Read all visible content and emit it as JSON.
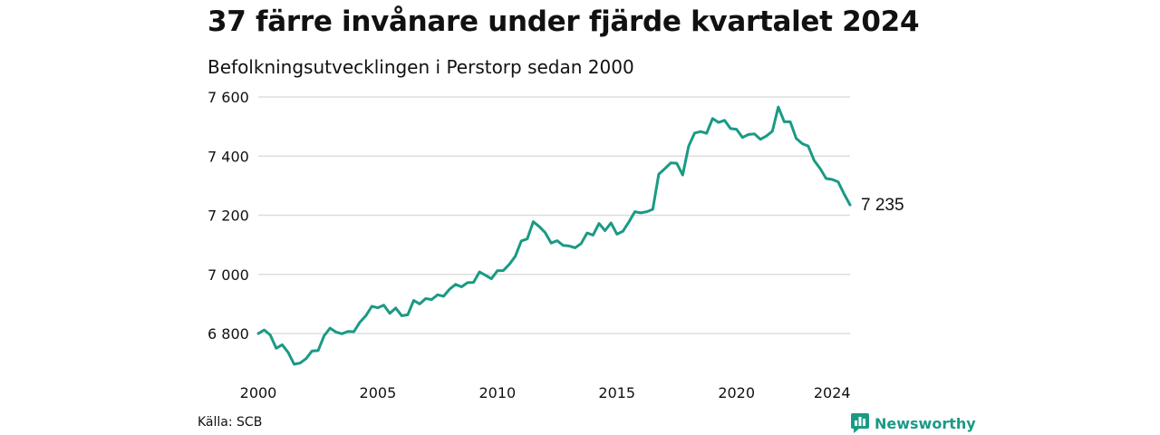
{
  "title": "37 färre invånare under fjärde kvartalet 2024",
  "subtitle": "Befolkningsutvecklingen i Perstorp sedan 2000",
  "source": "Källa: SCB",
  "brand": {
    "name": "Newsworthy",
    "icon": "bar-chart-icon",
    "color": "#1a9a85"
  },
  "chart_data": {
    "type": "line",
    "title": "37 färre invånare under fjärde kvartalet 2024",
    "subtitle": "Befolkningsutvecklingen i Perstorp sedan 2000",
    "xlabel": "",
    "ylabel": "",
    "ylim": [
      6700,
      7600
    ],
    "yticks": [
      6800,
      7000,
      7200,
      7400,
      7600
    ],
    "ytick_labels": [
      "6 800",
      "7 000",
      "7 200",
      "7 400",
      "7 600"
    ],
    "xticks": [
      2000,
      2005,
      2010,
      2015,
      2020,
      2024
    ],
    "xtick_labels": [
      "2000",
      "2005",
      "2010",
      "2015",
      "2020",
      "2024"
    ],
    "grid": "horizontal",
    "line_color": "#1a9a85",
    "end_label": "7 235",
    "series": [
      {
        "x": [
          2000.0,
          2000.25,
          2000.5,
          2000.75,
          2001.0,
          2001.25,
          2001.5,
          2001.75,
          2002.0,
          2002.25,
          2002.5,
          2002.75,
          2003.0,
          2003.25,
          2003.5,
          2003.75,
          2004.0,
          2004.25,
          2004.5,
          2004.75,
          2005.0,
          2005.25,
          2005.5,
          2005.75,
          2006.0,
          2006.25,
          2006.5,
          2006.75,
          2007.0,
          2007.25,
          2007.5,
          2007.75,
          2008.0,
          2008.25,
          2008.5,
          2008.75,
          2009.0,
          2009.25,
          2009.5,
          2009.75,
          2010.0,
          2010.25,
          2010.5,
          2010.75,
          2011.0,
          2011.25,
          2011.5,
          2011.75,
          2012.0,
          2012.25,
          2012.5,
          2012.75,
          2013.0,
          2013.25,
          2013.5,
          2013.75,
          2014.0,
          2014.25,
          2014.5,
          2014.75,
          2015.0,
          2015.25,
          2015.5,
          2015.75,
          2016.0,
          2016.25,
          2016.5,
          2016.75,
          2017.0,
          2017.25,
          2017.5,
          2017.75,
          2018.0,
          2018.25,
          2018.5,
          2018.75,
          2019.0,
          2019.25,
          2019.5,
          2019.75,
          2020.0,
          2020.25,
          2020.5,
          2020.75,
          2021.0,
          2021.25,
          2021.5,
          2021.75,
          2022.0,
          2022.25,
          2022.5,
          2022.75,
          2023.0,
          2023.25,
          2023.5,
          2023.75,
          2024.0,
          2024.25,
          2024.5,
          2024.75
        ],
        "values": [
          6800,
          6812,
          6795,
          6750,
          6762,
          6736,
          6696,
          6700,
          6715,
          6741,
          6742,
          6792,
          6818,
          6805,
          6799,
          6807,
          6806,
          6838,
          6860,
          6892,
          6887,
          6896,
          6868,
          6886,
          6860,
          6863,
          6912,
          6900,
          6918,
          6915,
          6931,
          6926,
          6950,
          6966,
          6958,
          6972,
          6973,
          7008,
          6997,
          6985,
          7012,
          7013,
          7034,
          7061,
          7113,
          7120,
          7178,
          7162,
          7141,
          7106,
          7114,
          7098,
          7096,
          7090,
          7104,
          7140,
          7133,
          7172,
          7148,
          7174,
          7136,
          7146,
          7177,
          7212,
          7208,
          7212,
          7220,
          7339,
          7357,
          7377,
          7376,
          7336,
          7434,
          7478,
          7483,
          7477,
          7527,
          7514,
          7521,
          7493,
          7491,
          7463,
          7473,
          7475,
          7457,
          7468,
          7484,
          7566,
          7516,
          7516,
          7460,
          7442,
          7434,
          7385,
          7358,
          7324,
          7321,
          7313,
          7272,
          7235
        ]
      }
    ]
  }
}
